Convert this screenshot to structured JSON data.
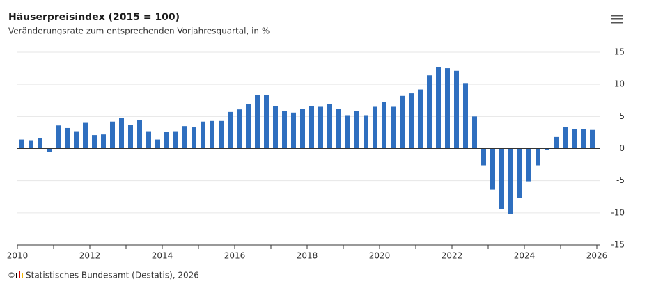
{
  "chart_data": {
    "type": "bar",
    "title": "Häuserpreisindex (2015 = 100)",
    "subtitle": "Veränderungsrate zum entsprechenden Vorjahresquartal, in %",
    "x": [
      2010.125,
      2010.375,
      2010.625,
      2010.875,
      2011.125,
      2011.375,
      2011.625,
      2011.875,
      2012.125,
      2012.375,
      2012.625,
      2012.875,
      2013.125,
      2013.375,
      2013.625,
      2013.875,
      2014.125,
      2014.375,
      2014.625,
      2014.875,
      2015.125,
      2015.375,
      2015.625,
      2015.875,
      2016.125,
      2016.375,
      2016.625,
      2016.875,
      2017.125,
      2017.375,
      2017.625,
      2017.875,
      2018.125,
      2018.375,
      2018.625,
      2018.875,
      2019.125,
      2019.375,
      2019.625,
      2019.875,
      2020.125,
      2020.375,
      2020.625,
      2020.875,
      2021.125,
      2021.375,
      2021.625,
      2021.875,
      2022.125,
      2022.375,
      2022.625,
      2022.875,
      2023.125,
      2023.375,
      2023.625,
      2023.875,
      2024.125,
      2024.375,
      2024.625,
      2024.875,
      2025.125,
      2025.375,
      2025.625,
      2025.875
    ],
    "values": [
      1.4,
      1.3,
      1.6,
      -0.5,
      3.6,
      3.2,
      2.7,
      4.0,
      2.1,
      2.2,
      4.2,
      4.8,
      3.7,
      4.4,
      2.7,
      1.4,
      2.6,
      2.7,
      3.5,
      3.3,
      4.2,
      4.3,
      4.3,
      5.7,
      6.1,
      6.9,
      8.3,
      8.3,
      6.6,
      5.8,
      5.6,
      6.2,
      6.6,
      6.5,
      6.9,
      6.2,
      5.2,
      5.9,
      5.2,
      6.5,
      7.3,
      6.5,
      8.2,
      8.6,
      9.2,
      11.4,
      12.7,
      12.5,
      12.1,
      10.2,
      5.0,
      -2.6,
      -6.4,
      -9.4,
      -10.2,
      -7.7,
      -5.1,
      -2.6,
      -0.2,
      1.8,
      3.4,
      3.0,
      3.0,
      2.9
    ],
    "color": "#2f6fbf",
    "xlim": [
      2010,
      2026
    ],
    "xticks": [
      2010,
      2012,
      2014,
      2016,
      2018,
      2020,
      2022,
      2024,
      2026
    ],
    "xminorticks": [
      2011,
      2013,
      2015,
      2017,
      2019,
      2021,
      2023,
      2025
    ],
    "ylim": [
      -15,
      15
    ],
    "yticks": [
      -15,
      -10,
      -5,
      0,
      5,
      10,
      15
    ],
    "grid": true,
    "copyright": "©",
    "source": "Statistisches Bundesamt (Destatis), 2026"
  }
}
